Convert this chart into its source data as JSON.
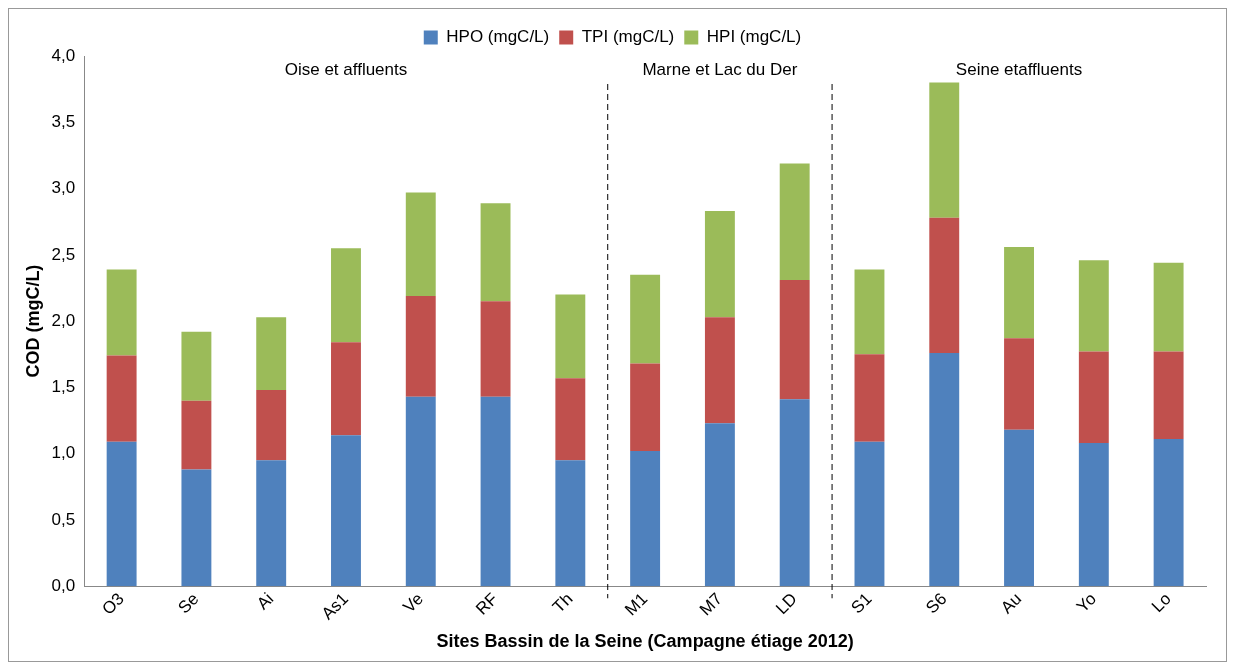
{
  "chart_data": {
    "type": "bar",
    "stacked": true,
    "xlabel": "Sites Bassin de la Seine (Campagne étiage 2012)",
    "ylabel": "COD (mgC/L)",
    "categories": [
      "O3",
      "Se",
      "Ai",
      "As1",
      "Ve",
      "RF",
      "Th",
      "M1",
      "M7",
      "LD",
      "S1",
      "S6",
      "Au",
      "Yo",
      "Lo"
    ],
    "series": [
      {
        "name": "HPO (mgC/L)",
        "color": "#4f81bd",
        "values": [
          1.09,
          0.88,
          0.95,
          1.14,
          1.43,
          1.43,
          0.95,
          1.02,
          1.23,
          1.41,
          1.09,
          1.76,
          1.18,
          1.08,
          1.11
        ]
      },
      {
        "name": "TPI (mgC/L)",
        "color": "#c0504d",
        "values": [
          0.65,
          0.52,
          0.53,
          0.7,
          0.76,
          0.72,
          0.62,
          0.66,
          0.8,
          0.9,
          0.66,
          1.02,
          0.69,
          0.69,
          0.66
        ]
      },
      {
        "name": "HPI (mgC/L)",
        "color": "#9bbb59",
        "values": [
          0.65,
          0.52,
          0.55,
          0.71,
          0.78,
          0.74,
          0.63,
          0.67,
          0.8,
          0.88,
          0.64,
          1.02,
          0.69,
          0.69,
          0.67
        ]
      }
    ],
    "ylim": [
      0,
      4
    ],
    "yticks": [
      {
        "value": 0,
        "label": "0,0"
      },
      {
        "value": 0.5,
        "label": "0,5"
      },
      {
        "value": 1,
        "label": "1,0"
      },
      {
        "value": 1.5,
        "label": "1,5"
      },
      {
        "value": 2,
        "label": "2,0"
      },
      {
        "value": 2.5,
        "label": "2,5"
      },
      {
        "value": 3,
        "label": "3,0"
      },
      {
        "value": 3.5,
        "label": "3,5"
      },
      {
        "value": 4,
        "label": "4,0"
      }
    ],
    "annotations": [
      "Oise et affluents",
      "Marne et Lac du Der",
      "Seine etaffluents"
    ],
    "legend": "top",
    "grid": false
  }
}
